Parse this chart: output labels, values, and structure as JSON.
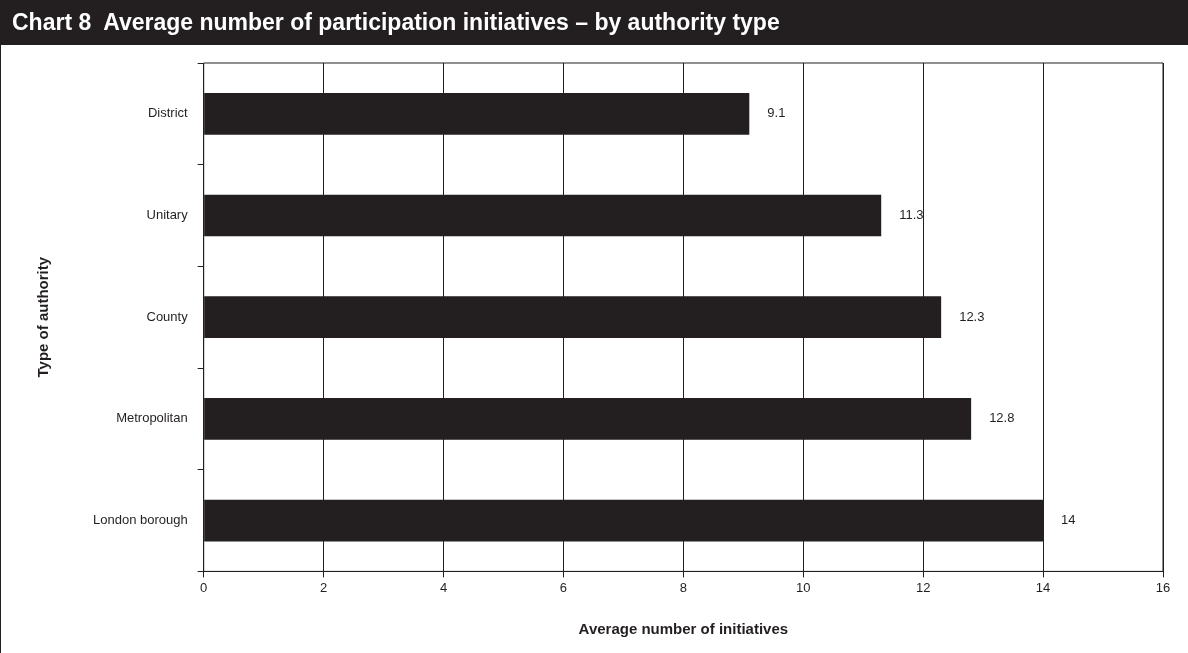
{
  "chart_data": {
    "type": "bar",
    "orientation": "horizontal",
    "title": "Chart 8  Average number of participation initiatives – by authority type",
    "xlabel": "Average number of initiatives",
    "ylabel": "Type of authority",
    "categories": [
      "District",
      "Unitary",
      "County",
      "Metropolitan",
      "London borough"
    ],
    "values": [
      9.1,
      11.3,
      12.3,
      12.8,
      14
    ],
    "color": "#231f20",
    "xlim": [
      0,
      16
    ],
    "xticks": [
      0,
      2,
      4,
      6,
      8,
      10,
      12,
      14,
      16
    ],
    "grid": "x",
    "data_labels": true,
    "legend": false
  }
}
